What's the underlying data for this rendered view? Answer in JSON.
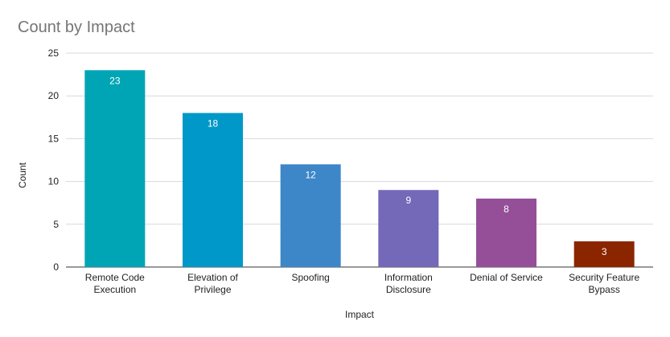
{
  "chart_data": {
    "type": "bar",
    "title": "Count by Impact",
    "xlabel": "Impact",
    "ylabel": "Count",
    "ylim": [
      0,
      25
    ],
    "yticks": [
      0,
      5,
      10,
      15,
      20,
      25
    ],
    "grid": true,
    "legend": "none",
    "categories": [
      [
        "Remote Code",
        "Execution"
      ],
      [
        "Elevation of",
        "Privilege"
      ],
      [
        "Spoofing"
      ],
      [
        "Information",
        "Disclosure"
      ],
      [
        "Denial of Service"
      ],
      [
        "Security Feature",
        "Bypass"
      ]
    ],
    "values": [
      23,
      18,
      12,
      9,
      8,
      3
    ],
    "colors": [
      "#00a5b5",
      "#0098c8",
      "#3d86c8",
      "#7468b8",
      "#944f98",
      "#8b2500"
    ]
  }
}
